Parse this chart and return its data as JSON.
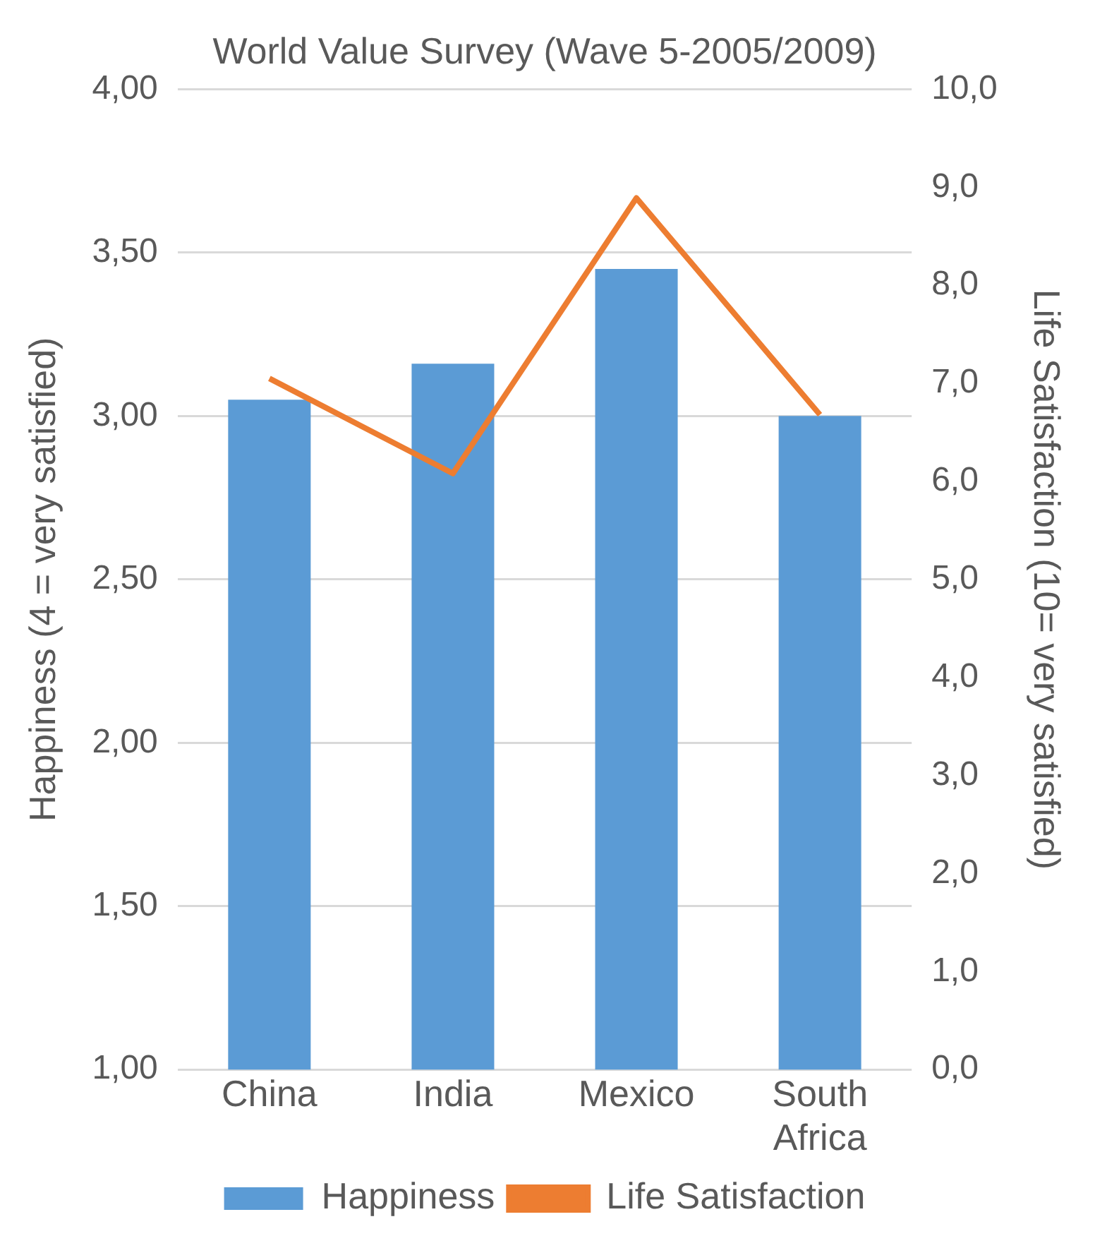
{
  "chart_data": {
    "type": "bar",
    "title": "World Value Survey (Wave 5-2005/2009)",
    "categories": [
      "China",
      "India",
      "Mexico",
      "South Africa"
    ],
    "series": [
      {
        "name": "Happiness",
        "color": "#5b9bd5",
        "values": [
          3.05,
          3.16,
          3.45,
          3.0
        ]
      },
      {
        "name": "Life Satisfaction",
        "type": "line",
        "axis": "y2",
        "color": "#ed7d31",
        "values": [
          7.05,
          6.08,
          8.89,
          6.68
        ]
      }
    ],
    "ylabel": "Happiness (4 = very satisfied)",
    "y2label": "Life Satisfaction (10= very satisfied)",
    "ylim": [
      1,
      4
    ],
    "yticks": [
      {
        "value": 1,
        "label": "1,00"
      },
      {
        "value": 1.5,
        "label": "1,50"
      },
      {
        "value": 2,
        "label": "2,00"
      },
      {
        "value": 2.5,
        "label": "2,50"
      },
      {
        "value": 3,
        "label": "3,00"
      },
      {
        "value": 3.5,
        "label": "3,50"
      },
      {
        "value": 4,
        "label": "4,00"
      }
    ],
    "y2lim": [
      0,
      10
    ],
    "y2ticks": [
      {
        "value": 0,
        "label": "0,0"
      },
      {
        "value": 1,
        "label": "1,0"
      },
      {
        "value": 2,
        "label": "2,0"
      },
      {
        "value": 3,
        "label": "3,0"
      },
      {
        "value": 4,
        "label": "4,0"
      },
      {
        "value": 5,
        "label": "5,0"
      },
      {
        "value": 6,
        "label": "6,0"
      },
      {
        "value": 7,
        "label": "7,0"
      },
      {
        "value": 8,
        "label": "8,0"
      },
      {
        "value": 9,
        "label": "9,0"
      },
      {
        "value": 10,
        "label": "10,0"
      }
    ],
    "grid": "y",
    "legend": "bottom",
    "marker": "none",
    "line_style": "solid"
  }
}
